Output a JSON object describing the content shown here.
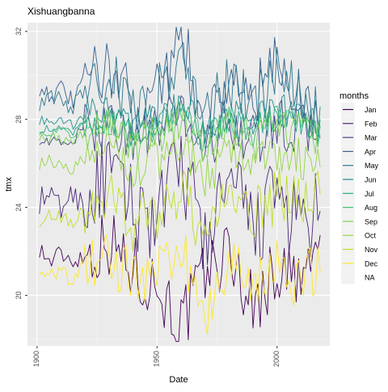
{
  "chart_data": {
    "type": "line",
    "title": "Xishuangbanna",
    "xlabel": "Date",
    "ylabel": "tmx",
    "xlim": [
      1896,
      2022
    ],
    "ylim": [
      17.7,
      32.4
    ],
    "x_ticks": [
      1900,
      1950,
      2000
    ],
    "x_tick_labels": [
      "1900",
      "1950",
      "2000"
    ],
    "y_ticks": [
      20,
      24,
      28,
      32
    ],
    "y_tick_labels": [
      "20",
      "24",
      "28",
      "32"
    ],
    "grid": true,
    "legend": {
      "title": "months",
      "placement": "right",
      "entries": [
        "Jan",
        "Feb",
        "Mar",
        "Apr",
        "May",
        "Jun",
        "Jul",
        "Aug",
        "Sep",
        "Oct",
        "Nov",
        "Dec",
        "NA"
      ]
    },
    "x_start": 1901,
    "x_end": 2018,
    "series": [
      {
        "name": "Jan",
        "color": "#440154",
        "mean": 21.6,
        "amp": 1.6,
        "x": [
          1901,
          1905,
          1910,
          1915,
          1920,
          1930,
          1940,
          1950,
          1960,
          1970,
          1980,
          1990,
          2000,
          2010,
          2018
        ],
        "values": [
          22.2,
          21.5,
          21.9,
          21.6,
          21.8,
          22.5,
          21.2,
          20.5,
          18.6,
          21.0,
          22.0,
          19.5,
          21.2,
          20.5,
          22.3
        ]
      },
      {
        "name": "Feb",
        "color": "#482576",
        "mean": 23.6,
        "amp": 2.0,
        "x": [
          1901,
          1905,
          1910,
          1915,
          1920,
          1930,
          1940,
          1950,
          1960,
          1970,
          1980,
          1990,
          2000,
          2010,
          2018
        ],
        "values": [
          24.3,
          24.5,
          24.0,
          24.6,
          24.2,
          25.5,
          24.0,
          23.5,
          26.0,
          22.5,
          25.0,
          23.0,
          24.5,
          23.0,
          23.8
        ]
      },
      {
        "name": "Mar",
        "color": "#414487",
        "mean": 27.5,
        "amp": 1.2,
        "x": [
          1901,
          1905,
          1910,
          1915,
          1920,
          1930,
          1940,
          1950,
          1960,
          1970,
          1980,
          1990,
          2000,
          2010,
          2018
        ],
        "values": [
          27.2,
          27.0,
          26.8,
          27.1,
          27.5,
          28.0,
          27.0,
          27.5,
          28.5,
          26.5,
          28.0,
          27.0,
          27.8,
          27.5,
          27.6
        ]
      },
      {
        "name": "Apr",
        "color": "#35608D",
        "mean": 28.9,
        "amp": 1.5,
        "x": [
          1901,
          1905,
          1910,
          1915,
          1920,
          1930,
          1940,
          1950,
          1960,
          1970,
          1980,
          1990,
          2000,
          2010,
          2018
        ],
        "values": [
          29.5,
          29.2,
          29.3,
          28.8,
          29.8,
          30.5,
          28.5,
          29.5,
          31.8,
          28.0,
          30.0,
          28.8,
          30.5,
          29.0,
          28.4
        ]
      },
      {
        "name": "May",
        "color": "#2A788E",
        "mean": 28.6,
        "amp": 1.4,
        "x": [
          1901,
          1905,
          1910,
          1915,
          1920,
          1930,
          1940,
          1950,
          1960,
          1970,
          1980,
          1990,
          2000,
          2010,
          2018
        ],
        "values": [
          28.8,
          28.9,
          29.0,
          28.5,
          29.5,
          30.0,
          28.3,
          29.0,
          31.0,
          27.8,
          29.8,
          28.5,
          30.0,
          28.8,
          28.2
        ]
      },
      {
        "name": "Jun",
        "color": "#21908C",
        "mean": 27.9,
        "amp": 0.8,
        "x": [
          1901,
          1905,
          1910,
          1915,
          1920,
          1930,
          1940,
          1950,
          1960,
          1970,
          1980,
          1990,
          2000,
          2010,
          2018
        ],
        "values": [
          28.0,
          27.8,
          27.9,
          27.7,
          28.2,
          28.5,
          27.6,
          28.0,
          28.8,
          27.4,
          28.3,
          27.8,
          28.5,
          28.0,
          27.8
        ]
      },
      {
        "name": "Jul",
        "color": "#22A884",
        "mean": 27.6,
        "amp": 0.7,
        "x": [
          1901,
          1905,
          1910,
          1915,
          1920,
          1930,
          1940,
          1950,
          1960,
          1970,
          1980,
          1990,
          2000,
          2010,
          2018
        ],
        "values": [
          27.6,
          27.5,
          27.6,
          27.4,
          27.9,
          28.1,
          27.3,
          27.7,
          28.4,
          27.2,
          28.0,
          27.5,
          28.2,
          27.8,
          27.5
        ]
      },
      {
        "name": "Aug",
        "color": "#43BF71",
        "mean": 27.6,
        "amp": 0.7,
        "x": [
          1901,
          1905,
          1910,
          1915,
          1920,
          1930,
          1940,
          1950,
          1960,
          1970,
          1980,
          1990,
          2000,
          2010,
          2018
        ],
        "values": [
          27.5,
          27.4,
          27.5,
          27.3,
          27.8,
          28.0,
          27.2,
          27.6,
          28.3,
          27.1,
          27.9,
          27.4,
          28.1,
          27.7,
          27.4
        ]
      },
      {
        "name": "Sep",
        "color": "#7AD151",
        "mean": 27.2,
        "amp": 0.9,
        "x": [
          1901,
          1905,
          1910,
          1915,
          1920,
          1930,
          1940,
          1950,
          1960,
          1970,
          1980,
          1990,
          2000,
          2010,
          2018
        ],
        "values": [
          27.3,
          27.2,
          27.1,
          27.0,
          27.5,
          27.8,
          26.8,
          27.3,
          28.0,
          26.5,
          27.6,
          27.0,
          27.8,
          27.4,
          27.0
        ]
      },
      {
        "name": "Oct",
        "color": "#92D742",
        "mean": 26.0,
        "amp": 1.0,
        "x": [
          1901,
          1905,
          1910,
          1915,
          1920,
          1930,
          1940,
          1950,
          1960,
          1970,
          1980,
          1990,
          2000,
          2010,
          2018
        ],
        "values": [
          26.0,
          26.2,
          25.9,
          25.7,
          26.4,
          26.8,
          25.6,
          26.1,
          26.9,
          25.3,
          26.5,
          25.8,
          26.6,
          26.2,
          25.9
        ]
      },
      {
        "name": "Nov",
        "color": "#BBDF27",
        "mean": 23.8,
        "amp": 1.3,
        "x": [
          1901,
          1905,
          1910,
          1915,
          1920,
          1930,
          1940,
          1950,
          1960,
          1970,
          1980,
          1990,
          2000,
          2010,
          2018
        ],
        "values": [
          23.5,
          23.8,
          23.6,
          23.3,
          24.0,
          24.8,
          23.2,
          23.8,
          25.0,
          22.5,
          24.5,
          23.5,
          24.6,
          24.0,
          25.0
        ]
      },
      {
        "name": "Dec",
        "color": "#FDE725",
        "mean": 21.1,
        "amp": 1.3,
        "x": [
          1901,
          1905,
          1910,
          1915,
          1920,
          1930,
          1940,
          1950,
          1960,
          1970,
          1980,
          1990,
          2000,
          2010,
          2018
        ],
        "values": [
          21.3,
          21.0,
          21.1,
          20.7,
          21.5,
          22.0,
          20.6,
          21.2,
          22.2,
          19.0,
          21.8,
          20.5,
          21.5,
          20.2,
          21.8
        ]
      }
    ]
  }
}
